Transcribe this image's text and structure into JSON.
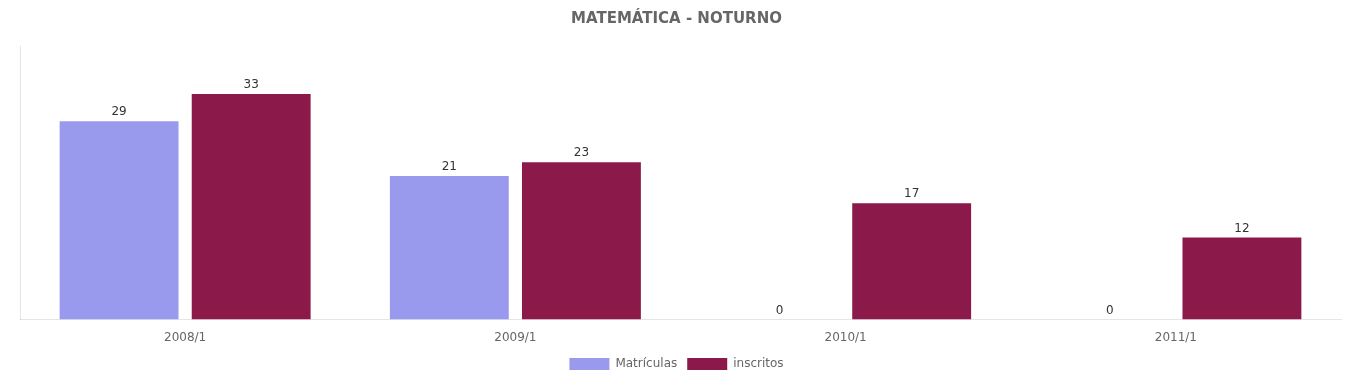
{
  "chart_data": {
    "type": "bar",
    "title": "MATEMÁTICA - NOTURNO",
    "categories": [
      "2008/1",
      "2009/1",
      "2010/1",
      "2011/1"
    ],
    "series": [
      {
        "name": "Matrículas",
        "color": "#9999ee",
        "values": [
          29,
          21,
          0,
          0
        ]
      },
      {
        "name": "inscritos",
        "color": "#8B1A4A",
        "values": [
          33,
          23,
          17,
          12
        ]
      }
    ],
    "ylim": [
      0,
      40
    ],
    "data_labels": true,
    "tick_labels": "x",
    "legend": "bottom",
    "grid": false
  }
}
